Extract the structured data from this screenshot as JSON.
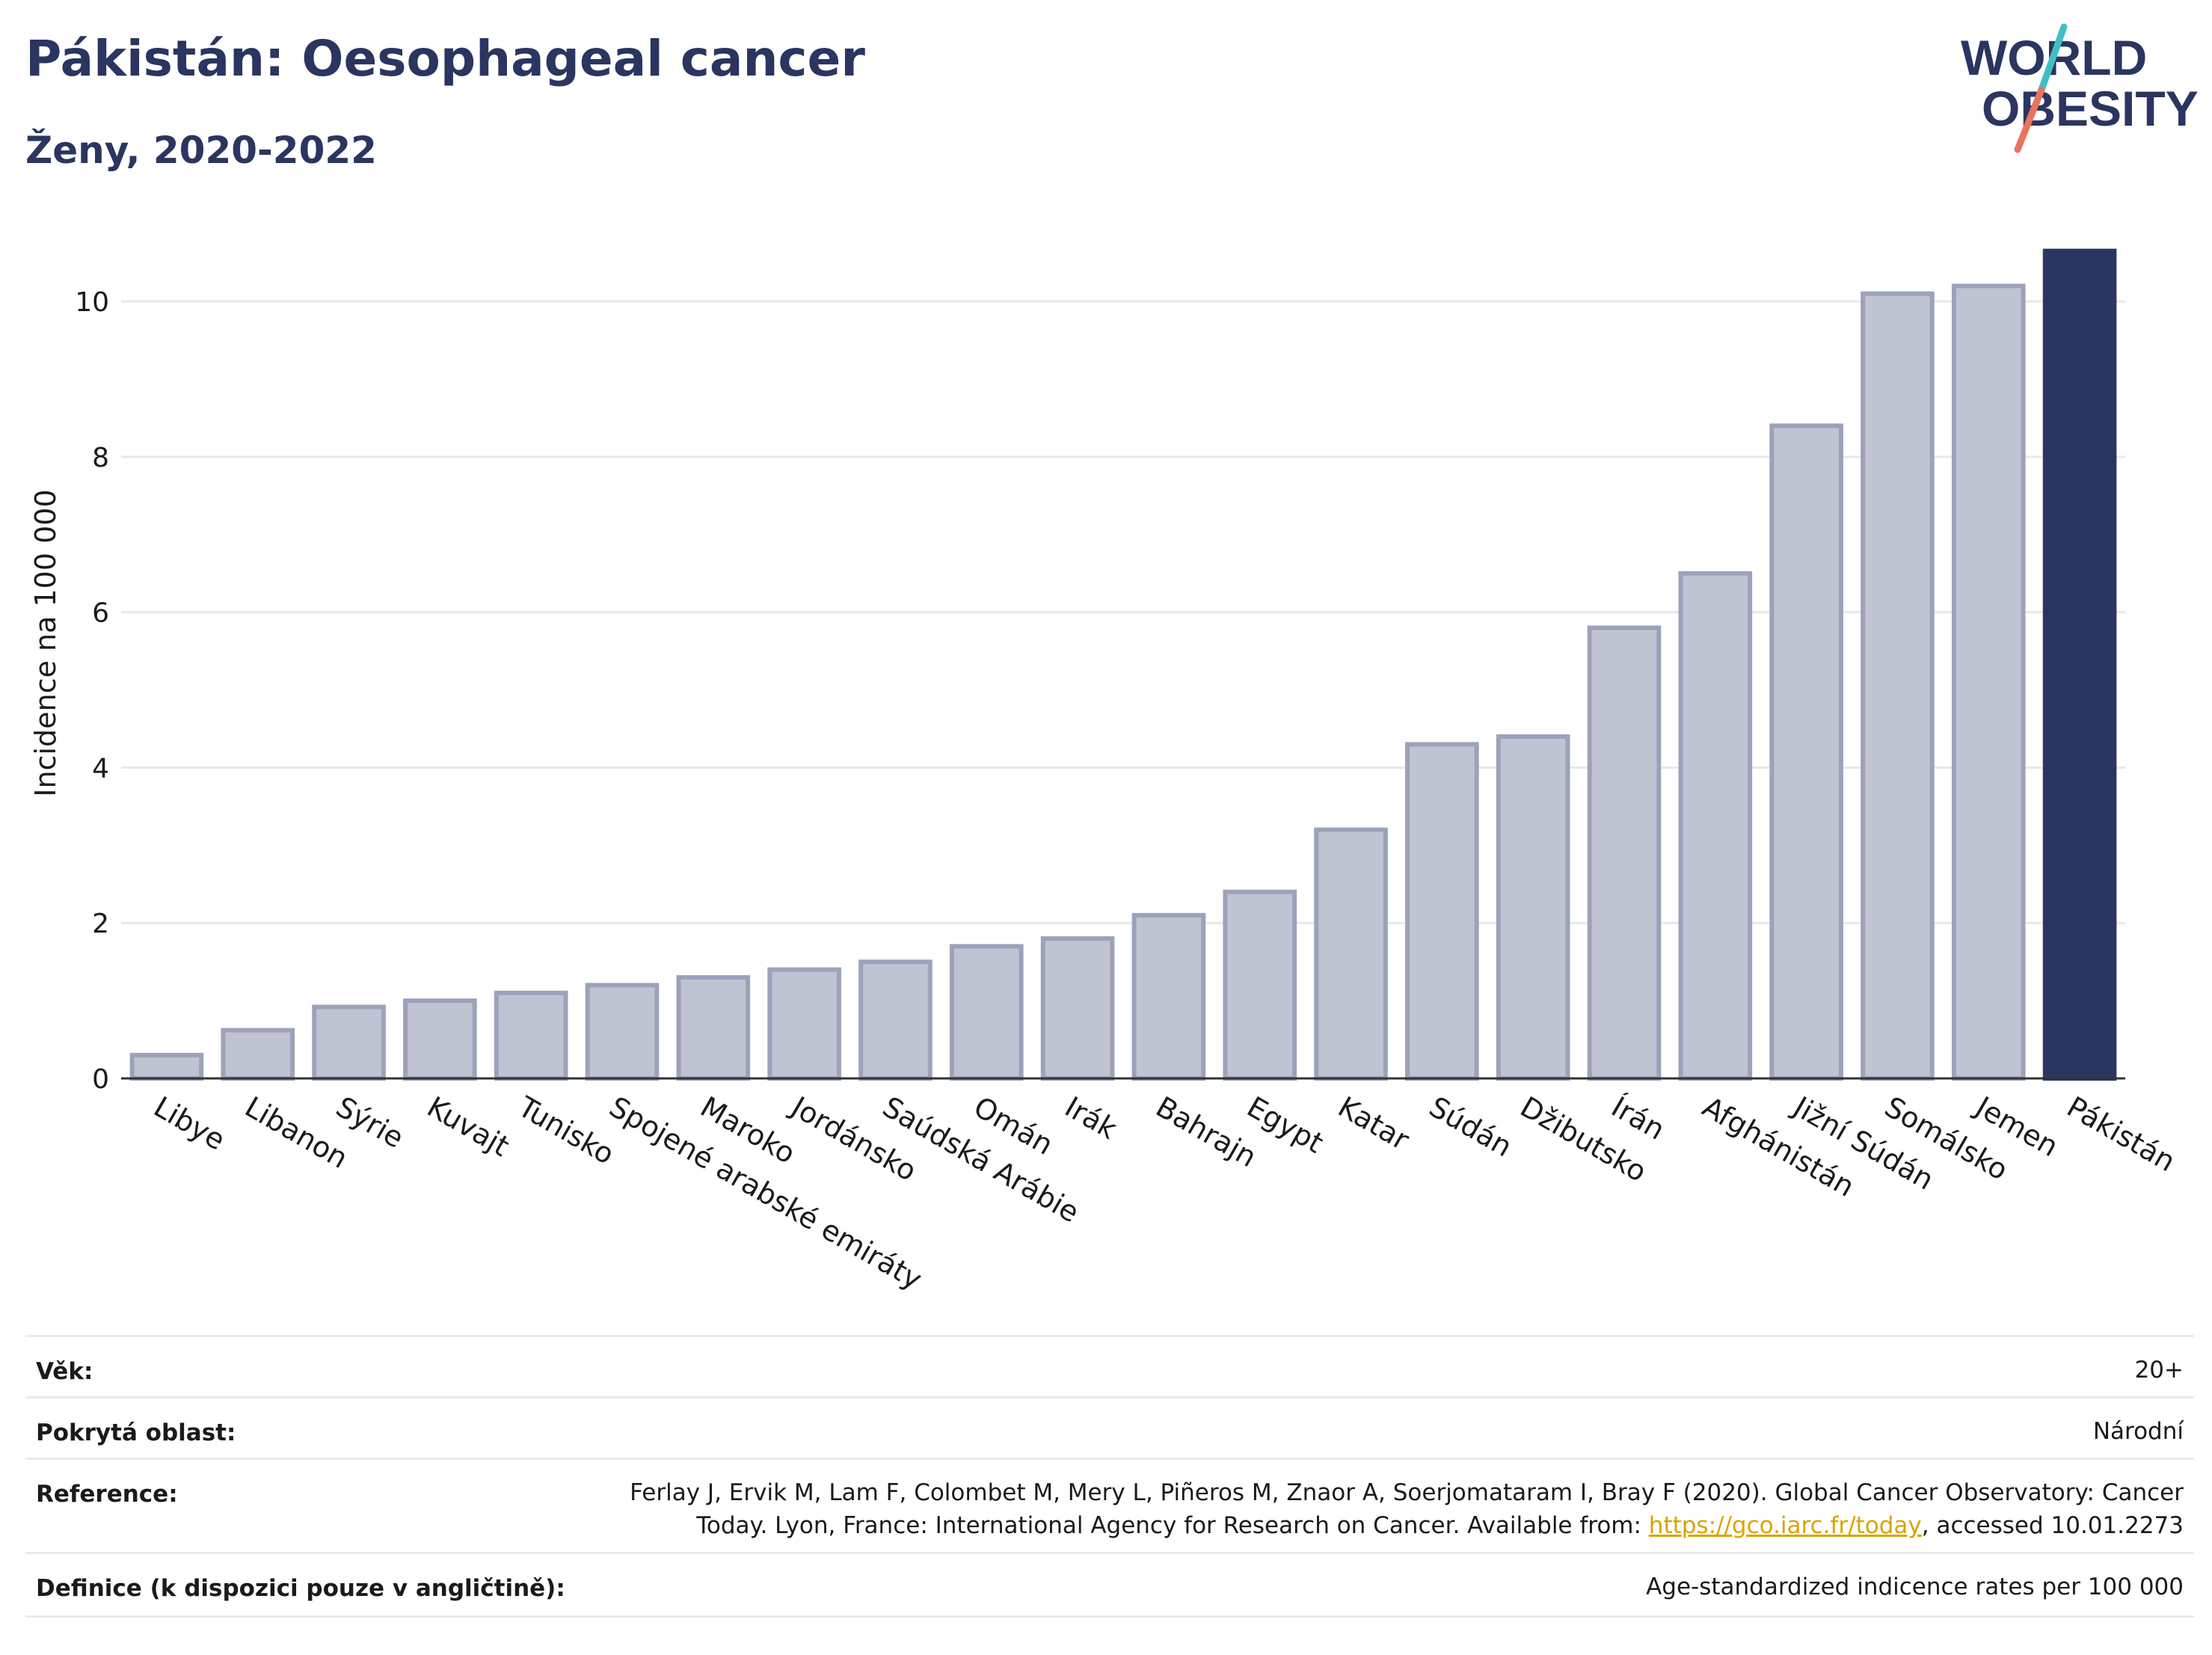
{
  "header": {
    "title": "Pákistán: Oesophageal cancer",
    "subtitle": "Ženy, 2020-2022"
  },
  "logo": {
    "line1": "WORLD",
    "line2": "OBESITY"
  },
  "colors": {
    "title": "#2a3560",
    "bar": "#c0c4d2",
    "bar_border": "#9ba2ba",
    "highlight": "#2a3560",
    "logo_teal": "#3fbfc4",
    "logo_coral": "#e8745f",
    "link": "#d9a400"
  },
  "chart_data": {
    "type": "bar",
    "ylabel": "Incidence na 100 000",
    "ylim": [
      0,
      10.8
    ],
    "yticks": [
      0,
      2,
      4,
      6,
      8,
      10
    ],
    "grid": true,
    "highlight_category": "Pákistán",
    "categories": [
      "Libye",
      "Libanon",
      "Sýrie",
      "Kuvajt",
      "Tunisko",
      "Spojené arabské emiráty",
      "Maroko",
      "Jordánsko",
      "Saúdská Arábie",
      "Omán",
      "Irák",
      "Bahrajn",
      "Egypt",
      "Katar",
      "Súdán",
      "Džibutsko",
      "Írán",
      "Afghánistán",
      "Jižní Súdán",
      "Somálsko",
      "Jemen",
      "Pákistán"
    ],
    "values": [
      0.3,
      0.62,
      0.92,
      1.0,
      1.1,
      1.2,
      1.3,
      1.4,
      1.5,
      1.7,
      1.8,
      2.1,
      2.4,
      3.2,
      4.3,
      4.4,
      5.8,
      6.5,
      8.4,
      10.1,
      10.2,
      10.65
    ]
  },
  "meta": {
    "age_label": "Věk:",
    "age_value": "20+",
    "coverage_label": "Pokrytá oblast:",
    "coverage_value": "Národní",
    "reference_label": "Reference:",
    "reference_line1": "Ferlay J, Ervik M, Lam F, Colombet M, Mery L, Piñeros M, Znaor A, Soerjomataram I, Bray F (2020). Global Cancer Observatory: Cancer",
    "reference_line2_pre": "Today. Lyon, France: International Agency for Research on Cancer. Available from: ",
    "reference_link": "https://gco.iarc.fr/today",
    "reference_line2_post": ", accessed 10.01.2273",
    "definition_label": "Definice (k dispozici pouze v angličtině):",
    "definition_value": "Age-standardized indicence rates per 100 000"
  }
}
